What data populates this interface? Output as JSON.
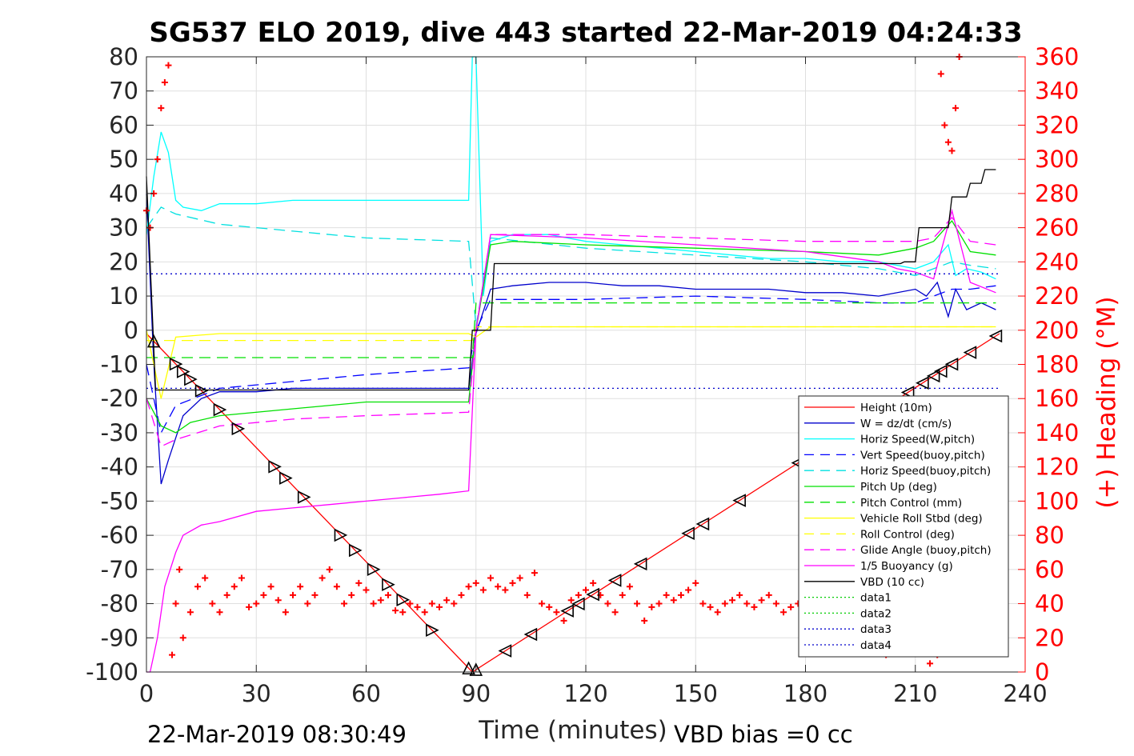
{
  "chart_data": {
    "type": "line",
    "title": "SG537 ELO 2019, dive 443 started 22-Mar-2019 04:24:33",
    "xlabel": "Time (minutes)",
    "ylabel_right": "(+) Heading (°M)",
    "footer_left": "22-Mar-2019 08:30:49",
    "footer_right": "VBD bias =0 cc",
    "xlim": [
      0,
      240
    ],
    "ylim": [
      -100,
      80
    ],
    "ylim_right": [
      0,
      360
    ],
    "grid": true,
    "legend_position": "bottom-right",
    "x_ticks": [
      "0",
      "30",
      "60",
      "90",
      "120",
      "150",
      "180",
      "210",
      "240"
    ],
    "y_ticks": [
      "80",
      "70",
      "60",
      "50",
      "40",
      "30",
      "20",
      "10",
      "0",
      "-10",
      "-20",
      "-30",
      "-40",
      "-50",
      "-60",
      "-70",
      "-80",
      "-90",
      "-100"
    ],
    "y_right_ticks": [
      "360",
      "340",
      "320",
      "300",
      "280",
      "260",
      "240",
      "220",
      "200",
      "180",
      "160",
      "140",
      "120",
      "100",
      "80",
      "60",
      "40",
      "20",
      "0"
    ],
    "series": [
      {
        "name": "Height (10m)",
        "color": "#ff0000",
        "style": "solid",
        "x": [
          0,
          89,
          233
        ],
        "y": [
          -1,
          -100,
          -1
        ]
      },
      {
        "name": "W = dz/dt (cm/s)",
        "color": "#0000cc",
        "style": "solid",
        "x": [
          0,
          2,
          4,
          6,
          10,
          15,
          20,
          30,
          40,
          50,
          60,
          70,
          80,
          88,
          90,
          94,
          100,
          110,
          120,
          130,
          140,
          150,
          160,
          170,
          180,
          190,
          200,
          210,
          213,
          216,
          219,
          221,
          224,
          228,
          232
        ],
        "y": [
          40,
          -10,
          -45,
          -38,
          -25,
          -20,
          -18,
          -18,
          -17,
          -17,
          -17,
          -17,
          -17,
          -17,
          -1,
          12,
          13,
          14,
          14,
          13,
          13,
          12,
          12,
          12,
          11,
          11,
          10,
          12,
          10,
          14,
          4,
          12,
          6,
          8,
          6
        ]
      },
      {
        "name": "Horiz Speed(W,pitch)",
        "color": "#00ffff",
        "style": "solid",
        "x": [
          0,
          2,
          4,
          6,
          8,
          10,
          15,
          20,
          30,
          40,
          50,
          60,
          70,
          80,
          88,
          89,
          90,
          92,
          94,
          100,
          110,
          120,
          130,
          140,
          150,
          160,
          170,
          180,
          190,
          200,
          210,
          215,
          219,
          221,
          224,
          228,
          232
        ],
        "y": [
          28,
          45,
          58,
          52,
          38,
          36,
          35,
          37,
          37,
          38,
          38,
          38,
          38,
          38,
          38,
          80,
          80,
          10,
          26,
          28,
          28,
          26,
          25,
          24,
          23,
          22,
          21,
          21,
          20,
          20,
          18,
          20,
          25,
          16,
          18,
          17,
          15
        ]
      },
      {
        "name": "Vert Speed(buoy,pitch)",
        "color": "#0000ff",
        "style": "dashed",
        "x": [
          0,
          4,
          8,
          20,
          40,
          60,
          88,
          90,
          94,
          120,
          150,
          180,
          200,
          210,
          215,
          220,
          225,
          232
        ],
        "y": [
          -10,
          -30,
          -22,
          -17,
          -15,
          -13,
          -11,
          0,
          9,
          9,
          10,
          9,
          8,
          8,
          10,
          12,
          12,
          13
        ]
      },
      {
        "name": "Horiz Speed(buoy,pitch)",
        "color": "#00e0e0",
        "style": "dashed",
        "x": [
          0,
          4,
          8,
          20,
          40,
          60,
          88,
          90,
          94,
          120,
          150,
          180,
          200,
          210,
          215,
          220,
          225,
          232
        ],
        "y": [
          30,
          36,
          34,
          31,
          29,
          27,
          26,
          1,
          27,
          24,
          22,
          20,
          18,
          16,
          18,
          20,
          19,
          18
        ]
      },
      {
        "name": "Pitch Up (deg)",
        "color": "#00e000",
        "style": "solid",
        "x": [
          0,
          4,
          8,
          12,
          20,
          40,
          60,
          88,
          90,
          94,
          100,
          120,
          150,
          180,
          200,
          210,
          215,
          220,
          225,
          232
        ],
        "y": [
          -20,
          -28,
          -30,
          -27,
          -25,
          -23,
          -21,
          -21,
          0,
          25,
          26,
          25,
          24,
          23,
          22,
          24,
          26,
          32,
          23,
          22
        ]
      },
      {
        "name": "Pitch Control (mm)",
        "color": "#00e000",
        "style": "dashed",
        "x": [
          0,
          4,
          8,
          89,
          90,
          94,
          232
        ],
        "y": [
          -8,
          -8,
          -8,
          -8,
          8,
          8,
          8
        ]
      },
      {
        "name": "Vehicle Roll Stbd (deg)",
        "color": "#ffff00",
        "style": "solid",
        "x": [
          0,
          4,
          8,
          20,
          40,
          60,
          88,
          90,
          94,
          120,
          150,
          180,
          200,
          210,
          220,
          232
        ],
        "y": [
          0,
          -20,
          -2,
          -1,
          -1,
          -1,
          -1,
          -2,
          1,
          1,
          1,
          1,
          1,
          1,
          1,
          1
        ]
      },
      {
        "name": "Roll Control (deg)",
        "color": "#ffff00",
        "style": "dashed",
        "x": [
          0,
          89,
          90,
          232
        ],
        "y": [
          -3,
          -3,
          1,
          1
        ]
      },
      {
        "name": "Glide Angle (buoy,pitch)",
        "color": "#ff00ff",
        "style": "dashed",
        "x": [
          0,
          4,
          8,
          20,
          40,
          60,
          88,
          90,
          94,
          120,
          150,
          180,
          200,
          210,
          215,
          220,
          225,
          232
        ],
        "y": [
          -20,
          -34,
          -32,
          -28,
          -26,
          -25,
          -24,
          0,
          28,
          28,
          27,
          26,
          26,
          26,
          27,
          33,
          26,
          25
        ]
      },
      {
        "name": "1/5 Buoyancy (g)",
        "color": "#ff00ff",
        "style": "solid",
        "x": [
          0,
          1,
          2,
          3,
          5,
          8,
          10,
          15,
          20,
          30,
          40,
          50,
          60,
          70,
          80,
          88,
          90,
          94,
          120,
          150,
          180,
          200,
          205,
          210,
          215,
          220,
          225,
          232
        ],
        "y": [
          -100,
          -100,
          -95,
          -90,
          -75,
          -65,
          -60,
          -57,
          -56,
          -53,
          -52,
          -51,
          -50,
          -49,
          -48,
          -47,
          0,
          28,
          27,
          25,
          23,
          20,
          18,
          17,
          15,
          35,
          14,
          11
        ]
      },
      {
        "name": "VBD (10 cc)",
        "color": "#000000",
        "style": "solid",
        "x": [
          0,
          2.5,
          3,
          88,
          89,
          94,
          95,
          206,
          207,
          210,
          211,
          219,
          220,
          224,
          225,
          228,
          229,
          232
        ],
        "y": [
          45,
          -17.5,
          -17.5,
          -17.5,
          0,
          0,
          19.5,
          19.5,
          20,
          20,
          30,
          30,
          39,
          39,
          43,
          43,
          47,
          47
        ]
      },
      {
        "name": "data1",
        "color": "#00cc00",
        "style": "dotted",
        "x": [],
        "y": []
      },
      {
        "name": "data2",
        "color": "#00cc00",
        "style": "dotted",
        "x": [],
        "y": []
      },
      {
        "name": "data3",
        "color": "#0000cc",
        "style": "dotted",
        "x": [
          0,
          233
        ],
        "y": [
          16.5,
          16.5
        ]
      },
      {
        "name": "data4",
        "color": "#0000cc",
        "style": "dotted",
        "x": [
          0,
          233
        ],
        "y": [
          -17,
          -17
        ]
      }
    ],
    "heading_series": {
      "name": "(+) Heading (°M)",
      "color": "#ff0000",
      "marker": "+",
      "axis": "right",
      "x": [
        0,
        1,
        2,
        3,
        4,
        5,
        6,
        7,
        8,
        9,
        10,
        12,
        14,
        16,
        18,
        20,
        22,
        24,
        26,
        28,
        30,
        32,
        34,
        36,
        38,
        40,
        42,
        44,
        46,
        48,
        50,
        52,
        54,
        56,
        58,
        60,
        62,
        64,
        66,
        68,
        70,
        72,
        74,
        76,
        78,
        80,
        82,
        84,
        86,
        88,
        90,
        92,
        94,
        96,
        98,
        100,
        102,
        104,
        106,
        108,
        110,
        112,
        114,
        116,
        118,
        120,
        122,
        124,
        126,
        128,
        130,
        132,
        134,
        136,
        138,
        140,
        142,
        144,
        146,
        148,
        150,
        152,
        154,
        156,
        158,
        160,
        162,
        164,
        166,
        168,
        170,
        172,
        174,
        176,
        178,
        180,
        182,
        184,
        186,
        188,
        190,
        192,
        194,
        196,
        198,
        200,
        202,
        204,
        212,
        214,
        216,
        217,
        218,
        219,
        220,
        221,
        222
      ],
      "y": [
        270,
        260,
        280,
        300,
        330,
        345,
        355,
        10,
        40,
        60,
        20,
        35,
        50,
        55,
        40,
        35,
        45,
        50,
        55,
        38,
        40,
        45,
        50,
        42,
        35,
        45,
        50,
        40,
        45,
        55,
        60,
        50,
        40,
        45,
        52,
        48,
        40,
        42,
        45,
        36,
        35,
        40,
        38,
        35,
        40,
        38,
        42,
        40,
        45,
        50,
        52,
        48,
        55,
        50,
        48,
        52,
        55,
        45,
        58,
        40,
        38,
        35,
        30,
        42,
        45,
        48,
        52,
        45,
        40,
        35,
        45,
        50,
        40,
        30,
        38,
        40,
        45,
        42,
        45,
        48,
        52,
        40,
        38,
        35,
        40,
        42,
        45,
        40,
        38,
        42,
        45,
        40,
        35,
        38,
        40,
        35,
        30,
        40,
        45,
        50,
        40,
        30,
        35,
        45,
        50,
        45,
        10,
        20,
        15,
        5,
        10,
        350,
        320,
        310,
        305,
        330,
        360
      ]
    },
    "triangle_markers": {
      "series": "Height (10m)",
      "x": [
        2,
        8,
        10,
        12,
        15,
        20,
        25,
        35,
        38,
        43,
        53,
        57,
        62,
        66,
        70,
        78,
        88,
        90,
        98,
        105,
        115,
        118,
        122,
        128,
        135,
        148,
        152,
        162,
        178,
        198,
        200,
        203,
        208,
        212,
        215,
        217,
        220,
        225,
        232
      ],
      "directions": [
        "up",
        "right",
        "right",
        "right",
        "right",
        "right",
        "right",
        "right",
        "right",
        "right",
        "right",
        "right",
        "right",
        "right",
        "right",
        "right",
        "up",
        "up",
        "left",
        "left",
        "left",
        "left",
        "left",
        "left",
        "left",
        "left",
        "left",
        "left",
        "left",
        "left",
        "left",
        "left",
        "left",
        "left",
        "left",
        "left",
        "left",
        "left",
        "left"
      ]
    }
  }
}
